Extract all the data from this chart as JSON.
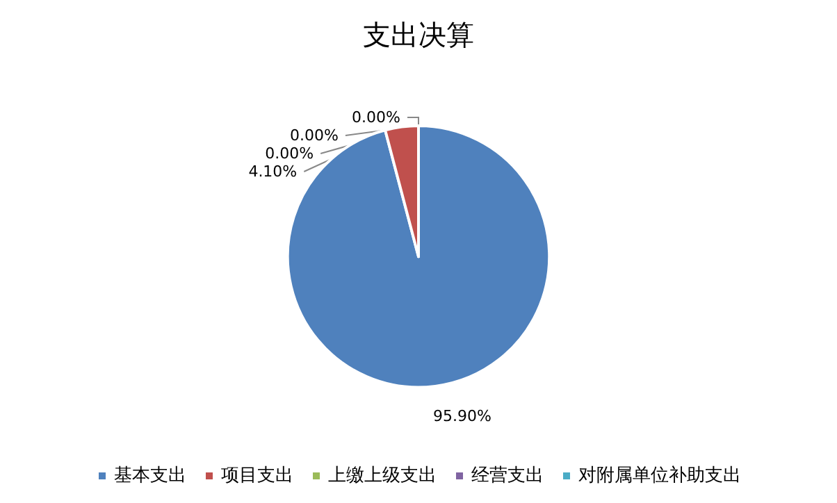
{
  "chart_data": {
    "type": "pie",
    "title": "支出决算",
    "categories": [
      "基本支出",
      "项目支出",
      "上缴上级支出",
      "经营支出",
      "对附属单位补助支出"
    ],
    "values": [
      95.9,
      4.1,
      0,
      0,
      0
    ],
    "colors": [
      "#4f81bd",
      "#c0504d",
      "#9bbb59",
      "#8064a2",
      "#4bacc6"
    ],
    "value_labels": [
      "95.90%",
      "4.10%",
      "0.00%",
      "0.00%",
      "0.00%"
    ],
    "legend": "bottom"
  }
}
